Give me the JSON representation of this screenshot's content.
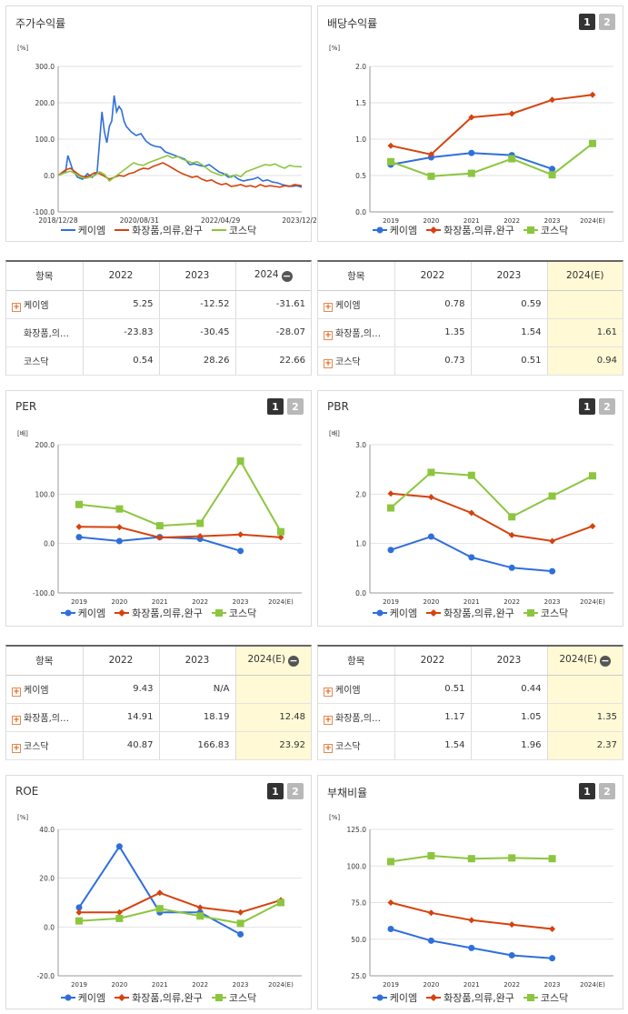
{
  "colors": {
    "kmd": "#2f6fdb",
    "cosmetics": "#d6420e",
    "kosdaq": "#8cc63f"
  },
  "legend": [
    "케이엠",
    "화장품,의류,완구",
    "코스닥"
  ],
  "pager": [
    "1",
    "2"
  ],
  "tables": [
    {
      "header": [
        "항목",
        "2022",
        "2023",
        "2024"
      ],
      "has_minus": true,
      "highlight_last": false,
      "rows": [
        {
          "name": "케이엠",
          "plus": true,
          "values": [
            "5.25",
            "-12.52",
            "-31.61"
          ]
        },
        {
          "name": "화장품,의…",
          "plus": false,
          "values": [
            "-23.83",
            "-30.45",
            "-28.07"
          ]
        },
        {
          "name": "코스닥",
          "plus": false,
          "values": [
            "0.54",
            "28.26",
            "22.66"
          ]
        }
      ]
    },
    {
      "header": [
        "항목",
        "2022",
        "2023",
        "2024(E)"
      ],
      "has_minus": false,
      "highlight_last": true,
      "rows": [
        {
          "name": "케이엠",
          "plus": true,
          "values": [
            "0.78",
            "0.59",
            ""
          ]
        },
        {
          "name": "화장품,의…",
          "plus": true,
          "values": [
            "1.35",
            "1.54",
            "1.61"
          ]
        },
        {
          "name": "코스닥",
          "plus": true,
          "values": [
            "0.73",
            "0.51",
            "0.94"
          ]
        }
      ]
    },
    {
      "header": [
        "항목",
        "2022",
        "2023",
        "2024(E)"
      ],
      "has_minus": true,
      "highlight_last": true,
      "rows": [
        {
          "name": "케이엠",
          "plus": true,
          "values": [
            "9.43",
            "N/A",
            ""
          ]
        },
        {
          "name": "화장품,의…",
          "plus": true,
          "values": [
            "14.91",
            "18.19",
            "12.48"
          ]
        },
        {
          "name": "코스닥",
          "plus": true,
          "values": [
            "40.87",
            "166.83",
            "23.92"
          ]
        }
      ]
    },
    {
      "header": [
        "항목",
        "2022",
        "2023",
        "2024(E)"
      ],
      "has_minus": true,
      "highlight_last": true,
      "rows": [
        {
          "name": "케이엠",
          "plus": true,
          "values": [
            "0.51",
            "0.44",
            ""
          ]
        },
        {
          "name": "화장품,의…",
          "plus": true,
          "values": [
            "1.17",
            "1.05",
            "1.35"
          ]
        },
        {
          "name": "코스닥",
          "plus": true,
          "values": [
            "1.54",
            "1.96",
            "2.37"
          ]
        }
      ]
    }
  ],
  "chart_data": [
    {
      "type": "line",
      "title": "주가수익률",
      "unit": "[%]",
      "ylim": [
        -100,
        300
      ],
      "yticks": [
        "300.0",
        "200.0",
        "100.0",
        "0.0",
        "-100.0"
      ],
      "xticks": [
        "2018/12/28",
        "2020/08/31",
        "2022/04/29",
        "2023/12/28"
      ],
      "x_range": [
        0,
        100
      ],
      "series": [
        {
          "name": "케이엠",
          "key": "kmd",
          "points": [
            [
              0,
              0
            ],
            [
              2,
              10
            ],
            [
              3,
              8
            ],
            [
              4,
              55
            ],
            [
              5,
              35
            ],
            [
              6,
              15
            ],
            [
              8,
              -5
            ],
            [
              10,
              -10
            ],
            [
              12,
              5
            ],
            [
              14,
              -5
            ],
            [
              16,
              10
            ],
            [
              18,
              175
            ],
            [
              19,
              120
            ],
            [
              20,
              90
            ],
            [
              21,
              135
            ],
            [
              22,
              150
            ],
            [
              23,
              220
            ],
            [
              24,
              175
            ],
            [
              25,
              190
            ],
            [
              26,
              180
            ],
            [
              27,
              150
            ],
            [
              28,
              135
            ],
            [
              30,
              120
            ],
            [
              32,
              110
            ],
            [
              34,
              115
            ],
            [
              36,
              95
            ],
            [
              38,
              85
            ],
            [
              40,
              80
            ],
            [
              42,
              78
            ],
            [
              44,
              65
            ],
            [
              46,
              60
            ],
            [
              48,
              55
            ],
            [
              50,
              50
            ],
            [
              52,
              45
            ],
            [
              54,
              30
            ],
            [
              56,
              32
            ],
            [
              58,
              28
            ],
            [
              60,
              25
            ],
            [
              62,
              30
            ],
            [
              64,
              20
            ],
            [
              66,
              10
            ],
            [
              68,
              5
            ],
            [
              70,
              -5
            ],
            [
              72,
              0
            ],
            [
              74,
              -10
            ],
            [
              76,
              -15
            ],
            [
              78,
              -12
            ],
            [
              80,
              -10
            ],
            [
              82,
              -5
            ],
            [
              84,
              -15
            ],
            [
              86,
              -12
            ],
            [
              88,
              -18
            ],
            [
              90,
              -20
            ],
            [
              92,
              -25
            ],
            [
              94,
              -28
            ],
            [
              96,
              -30
            ],
            [
              98,
              -28
            ],
            [
              100,
              -32
            ]
          ]
        },
        {
          "name": "화장품,의류,완구",
          "key": "cosmetics",
          "points": [
            [
              0,
              0
            ],
            [
              3,
              15
            ],
            [
              5,
              20
            ],
            [
              7,
              10
            ],
            [
              9,
              0
            ],
            [
              11,
              -5
            ],
            [
              13,
              0
            ],
            [
              15,
              8
            ],
            [
              17,
              5
            ],
            [
              19,
              -2
            ],
            [
              21,
              -10
            ],
            [
              23,
              -5
            ],
            [
              25,
              0
            ],
            [
              27,
              -2
            ],
            [
              29,
              5
            ],
            [
              31,
              8
            ],
            [
              33,
              15
            ],
            [
              35,
              20
            ],
            [
              37,
              18
            ],
            [
              39,
              25
            ],
            [
              41,
              30
            ],
            [
              43,
              35
            ],
            [
              45,
              28
            ],
            [
              47,
              20
            ],
            [
              49,
              12
            ],
            [
              51,
              5
            ],
            [
              53,
              0
            ],
            [
              55,
              -5
            ],
            [
              57,
              -2
            ],
            [
              59,
              -10
            ],
            [
              61,
              -15
            ],
            [
              63,
              -12
            ],
            [
              65,
              -20
            ],
            [
              67,
              -25
            ],
            [
              69,
              -22
            ],
            [
              71,
              -30
            ],
            [
              73,
              -28
            ],
            [
              75,
              -25
            ],
            [
              77,
              -30
            ],
            [
              79,
              -28
            ],
            [
              81,
              -32
            ],
            [
              83,
              -25
            ],
            [
              85,
              -30
            ],
            [
              87,
              -28
            ],
            [
              89,
              -30
            ],
            [
              91,
              -32
            ],
            [
              93,
              -28
            ],
            [
              95,
              -30
            ],
            [
              97,
              -25
            ],
            [
              100,
              -28
            ]
          ]
        },
        {
          "name": "코스닥",
          "key": "kosdaq",
          "points": [
            [
              0,
              0
            ],
            [
              3,
              8
            ],
            [
              5,
              12
            ],
            [
              7,
              5
            ],
            [
              9,
              -3
            ],
            [
              11,
              -8
            ],
            [
              13,
              -5
            ],
            [
              15,
              0
            ],
            [
              17,
              10
            ],
            [
              19,
              3
            ],
            [
              21,
              -15
            ],
            [
              23,
              -5
            ],
            [
              25,
              5
            ],
            [
              27,
              15
            ],
            [
              29,
              25
            ],
            [
              31,
              35
            ],
            [
              33,
              30
            ],
            [
              35,
              28
            ],
            [
              37,
              35
            ],
            [
              39,
              40
            ],
            [
              41,
              45
            ],
            [
              43,
              50
            ],
            [
              45,
              55
            ],
            [
              47,
              48
            ],
            [
              49,
              52
            ],
            [
              51,
              45
            ],
            [
              53,
              40
            ],
            [
              55,
              35
            ],
            [
              57,
              38
            ],
            [
              59,
              30
            ],
            [
              61,
              20
            ],
            [
              63,
              10
            ],
            [
              65,
              5
            ],
            [
              67,
              0
            ],
            [
              69,
              5
            ],
            [
              71,
              -5
            ],
            [
              73,
              2
            ],
            [
              75,
              -3
            ],
            [
              77,
              10
            ],
            [
              79,
              15
            ],
            [
              81,
              20
            ],
            [
              83,
              25
            ],
            [
              85,
              30
            ],
            [
              87,
              28
            ],
            [
              89,
              32
            ],
            [
              91,
              25
            ],
            [
              93,
              20
            ],
            [
              95,
              28
            ],
            [
              97,
              25
            ],
            [
              100,
              24
            ]
          ]
        }
      ]
    },
    {
      "type": "line",
      "title": "배당수익률",
      "unit": "[%]",
      "ylim": [
        0,
        2
      ],
      "yticks": [
        "2.0",
        "1.5",
        "1.0",
        "0.5",
        "0.0"
      ],
      "categories": [
        "2019",
        "2020",
        "2021",
        "2022",
        "2023",
        "2024(E)"
      ],
      "series": [
        {
          "name": "케이엠",
          "key": "kmd",
          "values": [
            0.65,
            0.75,
            0.81,
            0.78,
            0.59,
            null
          ]
        },
        {
          "name": "화장품,의류,완구",
          "key": "cosmetics",
          "values": [
            0.91,
            0.79,
            1.3,
            1.35,
            1.54,
            1.61
          ]
        },
        {
          "name": "코스닥",
          "key": "kosdaq",
          "values": [
            0.69,
            0.49,
            0.53,
            0.73,
            0.51,
            0.94
          ]
        }
      ]
    },
    {
      "type": "line",
      "title": "PER",
      "unit": "[배]",
      "ylim": [
        -100,
        200
      ],
      "yticks": [
        "200.0",
        "100.0",
        "0.0",
        "-100.0"
      ],
      "categories": [
        "2019",
        "2020",
        "2021",
        "2022",
        "2023",
        "2024(E)"
      ],
      "series": [
        {
          "name": "케이엠",
          "key": "kmd",
          "values": [
            13,
            5,
            13,
            9.43,
            -15,
            null
          ]
        },
        {
          "name": "화장품,의류,완구",
          "key": "cosmetics",
          "values": [
            34,
            33,
            12,
            14.91,
            18.19,
            12.48
          ]
        },
        {
          "name": "코스닥",
          "key": "kosdaq",
          "values": [
            79,
            70,
            36,
            40.87,
            166.83,
            23.92
          ]
        }
      ]
    },
    {
      "type": "line",
      "title": "PBR",
      "unit": "[배]",
      "ylim": [
        0,
        3
      ],
      "yticks": [
        "3.0",
        "2.0",
        "1.0",
        "0.0"
      ],
      "categories": [
        "2019",
        "2020",
        "2021",
        "2022",
        "2023",
        "2024(E)"
      ],
      "series": [
        {
          "name": "케이엠",
          "key": "kmd",
          "values": [
            0.87,
            1.14,
            0.72,
            0.51,
            0.44,
            null
          ]
        },
        {
          "name": "화장품,의류,완구",
          "key": "cosmetics",
          "values": [
            2.01,
            1.94,
            1.62,
            1.17,
            1.05,
            1.35
          ]
        },
        {
          "name": "코스닥",
          "key": "kosdaq",
          "values": [
            1.72,
            2.44,
            2.38,
            1.54,
            1.96,
            2.37
          ]
        }
      ]
    },
    {
      "type": "line",
      "title": "ROE",
      "unit": "[%]",
      "ylim": [
        -20,
        40
      ],
      "yticks": [
        "40.0",
        "20.0",
        "0.0",
        "-20.0"
      ],
      "categories": [
        "2019",
        "2020",
        "2021",
        "2022",
        "2023",
        "2024(E)"
      ],
      "series": [
        {
          "name": "케이엠",
          "key": "kmd",
          "values": [
            8,
            33,
            6,
            6,
            -3,
            null
          ]
        },
        {
          "name": "화장품,의류,완구",
          "key": "cosmetics",
          "values": [
            6,
            6,
            14,
            8,
            6,
            11
          ]
        },
        {
          "name": "코스닥",
          "key": "kosdaq",
          "values": [
            2.5,
            3.5,
            7.5,
            4.5,
            1.5,
            10
          ]
        }
      ]
    },
    {
      "type": "line",
      "title": "부채비율",
      "unit": "[%]",
      "ylim": [
        25,
        125
      ],
      "yticks": [
        "125.0",
        "100.0",
        "75.0",
        "50.0",
        "25.0"
      ],
      "categories": [
        "2019",
        "2020",
        "2021",
        "2022",
        "2023",
        "2024(E)"
      ],
      "series": [
        {
          "name": "케이엠",
          "key": "kmd",
          "values": [
            57,
            49,
            44,
            39,
            37,
            null
          ]
        },
        {
          "name": "화장품,의류,완구",
          "key": "cosmetics",
          "values": [
            75,
            68,
            63,
            60,
            57,
            null
          ]
        },
        {
          "name": "코스닥",
          "key": "kosdaq",
          "values": [
            103,
            107,
            105,
            105.5,
            105,
            null
          ]
        }
      ]
    }
  ]
}
